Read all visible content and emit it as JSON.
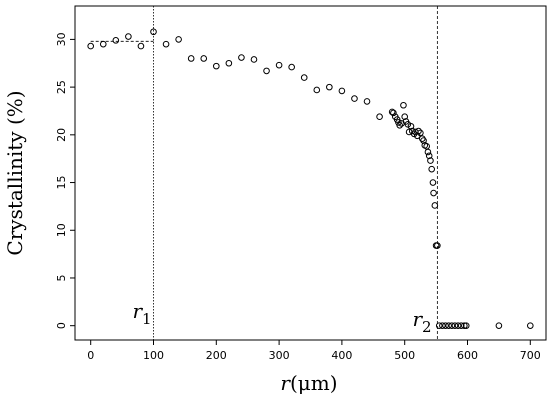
{
  "chart_data": {
    "type": "scatter",
    "xlabel": "r(μm)",
    "ylabel": "Crystallinity (%)",
    "xlim": [
      -25,
      725
    ],
    "ylim": [
      -1.5,
      33.5
    ],
    "x_ticks": [
      0,
      100,
      200,
      300,
      400,
      500,
      600,
      700
    ],
    "y_ticks": [
      0,
      5,
      10,
      15,
      20,
      25,
      30
    ],
    "grid": false,
    "legend": "none",
    "marker": "open-circle",
    "vlines": [
      {
        "x": 100,
        "label": "r",
        "sub": "1",
        "style": "dotted"
      },
      {
        "x": 552,
        "label": "r",
        "sub": "2",
        "style": "dashed"
      }
    ],
    "reference_hline": {
      "y": 29.8,
      "x_range": [
        0,
        100
      ],
      "style": "dashed"
    },
    "points": [
      [
        0,
        29.3
      ],
      [
        20,
        29.5
      ],
      [
        40,
        29.9
      ],
      [
        60,
        30.3
      ],
      [
        80,
        29.3
      ],
      [
        100,
        30.8
      ],
      [
        120,
        29.5
      ],
      [
        140,
        30.0
      ],
      [
        160,
        28.0
      ],
      [
        180,
        28.0
      ],
      [
        200,
        27.2
      ],
      [
        220,
        27.5
      ],
      [
        240,
        28.1
      ],
      [
        260,
        27.9
      ],
      [
        280,
        26.7
      ],
      [
        300,
        27.3
      ],
      [
        320,
        27.1
      ],
      [
        340,
        26.0
      ],
      [
        360,
        24.7
      ],
      [
        380,
        25.0
      ],
      [
        400,
        24.6
      ],
      [
        420,
        23.8
      ],
      [
        440,
        23.5
      ],
      [
        460,
        21.9
      ],
      [
        480,
        22.4
      ],
      [
        482,
        22.3
      ],
      [
        485,
        21.9
      ],
      [
        488,
        21.6
      ],
      [
        490,
        21.3
      ],
      [
        492,
        21.0
      ],
      [
        495,
        21.2
      ],
      [
        498,
        23.1
      ],
      [
        500,
        21.9
      ],
      [
        502,
        21.4
      ],
      [
        505,
        21.1
      ],
      [
        507,
        20.3
      ],
      [
        510,
        20.9
      ],
      [
        512,
        20.4
      ],
      [
        515,
        20.1
      ],
      [
        517,
        20.3
      ],
      [
        520,
        19.9
      ],
      [
        522,
        20.4
      ],
      [
        525,
        20.2
      ],
      [
        528,
        19.6
      ],
      [
        530,
        19.4
      ],
      [
        532,
        18.9
      ],
      [
        535,
        18.8
      ],
      [
        537,
        18.2
      ],
      [
        539,
        17.8
      ],
      [
        541,
        17.3
      ],
      [
        543,
        16.4
      ],
      [
        545,
        15.0
      ],
      [
        546,
        13.9
      ],
      [
        548,
        12.6
      ],
      [
        550,
        8.4
      ],
      [
        552,
        8.4
      ],
      [
        555,
        0
      ],
      [
        560,
        0
      ],
      [
        565,
        0
      ],
      [
        570,
        0
      ],
      [
        575,
        0
      ],
      [
        580,
        0
      ],
      [
        585,
        0
      ],
      [
        590,
        0
      ],
      [
        595,
        0
      ],
      [
        598,
        0
      ],
      [
        650,
        0
      ],
      [
        700,
        0
      ]
    ]
  }
}
